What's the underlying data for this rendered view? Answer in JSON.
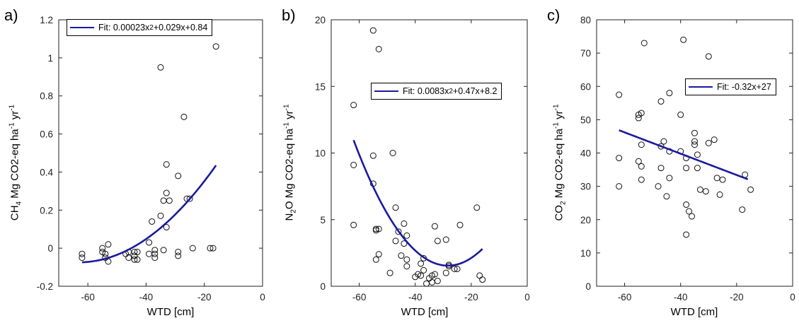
{
  "chart_data": [
    {
      "panel": "a)",
      "type": "scatter",
      "xlabel": "WTD [cm]",
      "ylabel": {
        "pre": "CH",
        "sub": "4",
        "mid": " Mg CO2-eq ha",
        "sup1": "-1",
        "mid2": " yr",
        "sup2": "-1"
      },
      "xlim": [
        -70,
        0
      ],
      "ylim": [
        -0.2,
        1.2
      ],
      "xticks": [
        -60,
        -40,
        -20,
        0
      ],
      "yticks": [
        -0.2,
        0,
        0.2,
        0.4,
        0.6,
        0.8,
        1,
        1.2
      ],
      "ytick_labels": [
        "-0.2",
        "0",
        "0.2",
        "0.4",
        "0.6",
        "0.8",
        "1",
        "1.2"
      ],
      "grid": false,
      "legend": {
        "placement": "top-left",
        "pre": "Fit: 0.00023x",
        "sup": "2",
        "post": "+0.029x+0.84"
      },
      "fit": {
        "type": "poly2",
        "a": 0.00023,
        "b": 0.029,
        "c": 0.84,
        "x_range": [
          -62,
          -16
        ]
      },
      "points": [
        [
          -62,
          -0.03
        ],
        [
          -62,
          -0.05
        ],
        [
          -55,
          0.0
        ],
        [
          -55,
          -0.02
        ],
        [
          -54,
          -0.05
        ],
        [
          -54,
          -0.03
        ],
        [
          -53,
          0.02
        ],
        [
          -53,
          -0.07
        ],
        [
          -47,
          -0.03
        ],
        [
          -46,
          -0.02
        ],
        [
          -46,
          -0.05
        ],
        [
          -44,
          -0.02
        ],
        [
          -44,
          -0.04
        ],
        [
          -44,
          -0.06
        ],
        [
          -43,
          -0.06
        ],
        [
          -43,
          -0.02
        ],
        [
          -39,
          0.03
        ],
        [
          -39,
          -0.03
        ],
        [
          -38,
          0.14
        ],
        [
          -37,
          -0.01
        ],
        [
          -37,
          -0.03
        ],
        [
          -37,
          -0.05
        ],
        [
          -35,
          0.17
        ],
        [
          -35,
          0.95
        ],
        [
          -34,
          0.25
        ],
        [
          -34,
          -0.01
        ],
        [
          -33,
          0.44
        ],
        [
          -33,
          0.29
        ],
        [
          -33,
          0.11
        ],
        [
          -32,
          0.25
        ],
        [
          -29,
          0.38
        ],
        [
          -29,
          -0.02
        ],
        [
          -29,
          -0.04
        ],
        [
          -27,
          0.69
        ],
        [
          -26,
          0.26
        ],
        [
          -25,
          0.26
        ],
        [
          -24,
          0.0
        ],
        [
          -18,
          0.0
        ],
        [
          -17,
          0.0
        ],
        [
          -16,
          1.06
        ]
      ]
    },
    {
      "panel": "b)",
      "type": "scatter",
      "xlabel": "WTD [cm]",
      "ylabel": {
        "pre": "N",
        "sub": "2",
        "mid": "O Mg CO2-eq ha",
        "sup1": "-1",
        "mid2": " yr",
        "sup2": "-1"
      },
      "xlim": [
        -70,
        0
      ],
      "ylim": [
        0,
        20
      ],
      "xticks": [
        -60,
        -40,
        -20,
        0
      ],
      "yticks": [
        0,
        5,
        10,
        15,
        20
      ],
      "ytick_labels": [
        "0",
        "5",
        "10",
        "15",
        "20"
      ],
      "grid": false,
      "legend": {
        "placement": "top-right",
        "pre": "Fit: 0.0083x",
        "sup": "2",
        "post": "+0.47x+8.2"
      },
      "fit": {
        "type": "poly2",
        "a": 0.0083,
        "b": 0.47,
        "c": 8.2,
        "x_range": [
          -62,
          -16
        ]
      },
      "points": [
        [
          -62,
          13.6
        ],
        [
          -62,
          9.1
        ],
        [
          -62,
          4.6
        ],
        [
          -55,
          19.2
        ],
        [
          -55,
          9.8
        ],
        [
          -55,
          7.7
        ],
        [
          -54,
          4.3
        ],
        [
          -54,
          4.2
        ],
        [
          -54,
          2.0
        ],
        [
          -53,
          17.8
        ],
        [
          -53,
          4.3
        ],
        [
          -53,
          2.4
        ],
        [
          -49,
          1.0
        ],
        [
          -48,
          10.0
        ],
        [
          -47,
          5.9
        ],
        [
          -47,
          3.4
        ],
        [
          -46,
          4.1
        ],
        [
          -45,
          2.3
        ],
        [
          -44,
          3.2
        ],
        [
          -44,
          4.7
        ],
        [
          -43,
          3.8
        ],
        [
          -43,
          2.0
        ],
        [
          -43,
          1.5
        ],
        [
          -40,
          0.7
        ],
        [
          -39,
          0.9
        ],
        [
          -38,
          0.8
        ],
        [
          -38,
          1.7
        ],
        [
          -37,
          1.2
        ],
        [
          -37,
          2.1
        ],
        [
          -36,
          0.2
        ],
        [
          -35,
          0.6
        ],
        [
          -34,
          0.3
        ],
        [
          -34,
          0.8
        ],
        [
          -33,
          0.9
        ],
        [
          -33,
          4.5
        ],
        [
          -32,
          3.4
        ],
        [
          -32,
          0.4
        ],
        [
          -29,
          1.0
        ],
        [
          -29,
          3.5
        ],
        [
          -28,
          1.5
        ],
        [
          -28,
          1.6
        ],
        [
          -26,
          1.3
        ],
        [
          -25,
          1.3
        ],
        [
          -24,
          4.6
        ],
        [
          -18,
          5.9
        ],
        [
          -17,
          0.8
        ],
        [
          -16,
          0.5
        ]
      ]
    },
    {
      "panel": "c)",
      "type": "scatter",
      "xlabel": "WTD [cm]",
      "ylabel": {
        "pre": "CO",
        "sub": "2",
        "mid": " Mg CO2-eq ha",
        "sup1": "-1",
        "mid2": " yr",
        "sup2": "-1"
      },
      "xlim": [
        -70,
        0
      ],
      "ylim": [
        0,
        80
      ],
      "xticks": [
        -60,
        -40,
        -20,
        0
      ],
      "yticks": [
        0,
        10,
        20,
        30,
        40,
        50,
        60,
        70,
        80
      ],
      "ytick_labels": [
        "0",
        "10",
        "20",
        "30",
        "40",
        "50",
        "60",
        "70",
        "80"
      ],
      "grid": false,
      "legend": {
        "placement": "top-right",
        "pre": "Fit: -0.32x+27",
        "sup": "",
        "post": ""
      },
      "fit": {
        "type": "linear",
        "a": 0,
        "b": -0.32,
        "c": 27,
        "x_range": [
          -62,
          -16
        ]
      },
      "points": [
        [
          -62,
          57.5
        ],
        [
          -62,
          38.5
        ],
        [
          -62,
          30.0
        ],
        [
          -55,
          51.5
        ],
        [
          -55,
          50.5
        ],
        [
          -55,
          37.5
        ],
        [
          -54,
          52.0
        ],
        [
          -54,
          42.5
        ],
        [
          -54,
          36.0
        ],
        [
          -54,
          32.0
        ],
        [
          -53,
          73.0
        ],
        [
          -48,
          30.0
        ],
        [
          -47,
          55.5
        ],
        [
          -47,
          42.0
        ],
        [
          -47,
          35.5
        ],
        [
          -46,
          43.5
        ],
        [
          -44,
          58.0
        ],
        [
          -44,
          40.5
        ],
        [
          -44,
          32.5
        ],
        [
          -45,
          27.0
        ],
        [
          -40,
          51.5
        ],
        [
          -40,
          40.5
        ],
        [
          -39,
          74.0
        ],
        [
          -38,
          38.5
        ],
        [
          -38,
          35.5
        ],
        [
          -38,
          15.5
        ],
        [
          -38,
          24.5
        ],
        [
          -37,
          22.5
        ],
        [
          -36,
          21.0
        ],
        [
          -35,
          42.5
        ],
        [
          -35,
          43.5
        ],
        [
          -35,
          46.0
        ],
        [
          -34,
          39.5
        ],
        [
          -34,
          35.5
        ],
        [
          -33,
          29.0
        ],
        [
          -31,
          28.5
        ],
        [
          -30,
          69.0
        ],
        [
          -30,
          43.0
        ],
        [
          -28,
          44.0
        ],
        [
          -27,
          32.5
        ],
        [
          -26,
          27.5
        ],
        [
          -25,
          32.0
        ],
        [
          -18,
          23.0
        ],
        [
          -17,
          33.5
        ],
        [
          -15,
          29.0
        ]
      ]
    }
  ]
}
